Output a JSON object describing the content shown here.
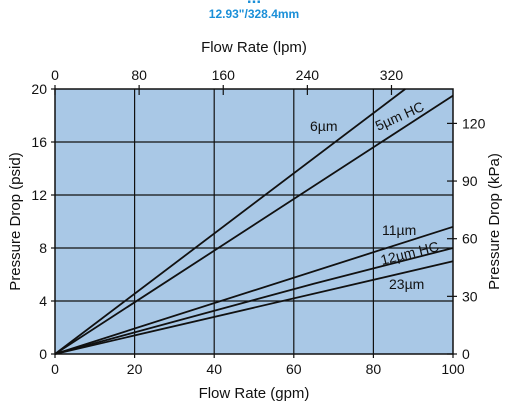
{
  "header": {
    "title": "...",
    "subtitle": "12.93\"/328.4mm"
  },
  "chart_data": {
    "type": "line",
    "title": "...",
    "subtitle": "12.93\"/328.4mm",
    "xlabel": "Flow Rate  (gpm)",
    "ylabel": "Pressure Drop  (psid)",
    "x2label": "Flow Rate  (lpm)",
    "y2label": "Pressure Drop  (kPa)",
    "xlim": [
      0,
      100
    ],
    "ylim": [
      0,
      20
    ],
    "x2lim": [
      0,
      378.5
    ],
    "y2lim": [
      0,
      137.9
    ],
    "xticks": [
      0,
      20,
      40,
      60,
      80,
      100
    ],
    "yticks": [
      0,
      4,
      8,
      12,
      16,
      20
    ],
    "x2ticks": [
      0,
      80,
      160,
      240,
      320
    ],
    "y2ticks": [
      0,
      30,
      60,
      90,
      120
    ],
    "grid": true,
    "background": "#a9c8e6",
    "line_color": "#111111",
    "series": [
      {
        "name": "6µm",
        "x": [
          0,
          88
        ],
        "y": [
          0,
          20
        ]
      },
      {
        "name": "5µm HC",
        "x": [
          0,
          100
        ],
        "y": [
          0,
          19.5
        ]
      },
      {
        "name": "11µm",
        "x": [
          0,
          100
        ],
        "y": [
          0,
          9.6
        ]
      },
      {
        "name": "12µm HC",
        "x": [
          0,
          65,
          100
        ],
        "y": [
          0,
          5.3,
          8.0
        ]
      },
      {
        "name": "23µm",
        "x": [
          0,
          100
        ],
        "y": [
          0,
          7.0
        ]
      }
    ]
  }
}
